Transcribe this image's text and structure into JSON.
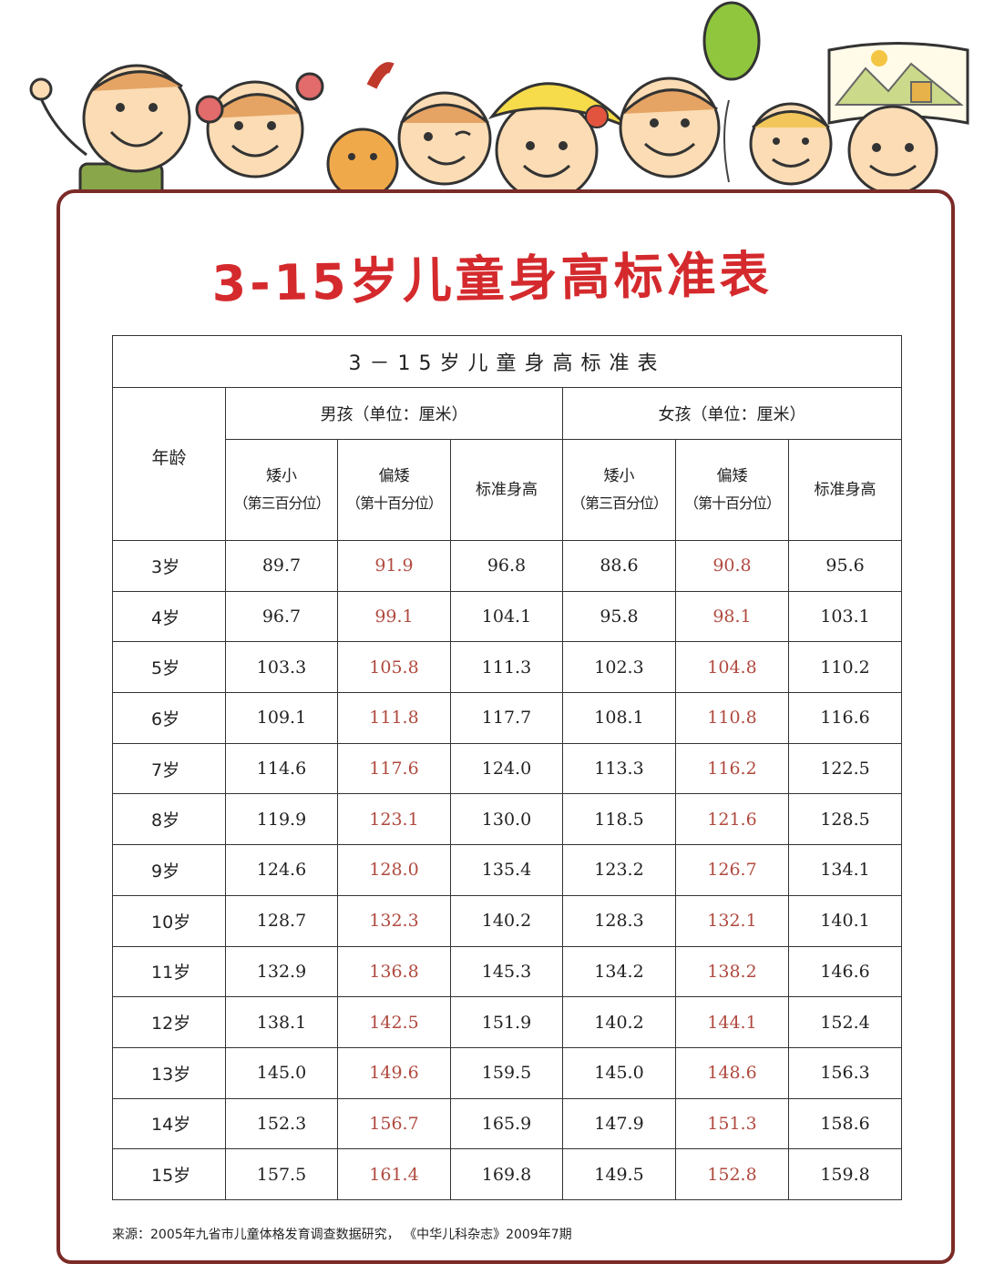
{
  "poster": {
    "title": "3-15岁儿童身高标准表",
    "table_title": "3－15岁儿童身高标准表",
    "source": "来源：2005年九省市儿童体格发育调查数据研究，  《中华儿科杂志》2009年7期"
  },
  "header": {
    "age": "年龄",
    "boys": "男孩（单位：厘米）",
    "girls": "女孩（单位：厘米）",
    "short": "矮小",
    "short_p": "（第三百分位）",
    "below": "偏矮",
    "below_p": "（第十百分位）",
    "standard": "标准身高"
  },
  "rows": [
    {
      "age": "3岁",
      "b1": "89.7",
      "b2": "91.9",
      "b3": "96.8",
      "g1": "88.6",
      "g2": "90.8",
      "g3": "95.6"
    },
    {
      "age": "4岁",
      "b1": "96.7",
      "b2": "99.1",
      "b3": "104.1",
      "g1": "95.8",
      "g2": "98.1",
      "g3": "103.1"
    },
    {
      "age": "5岁",
      "b1": "103.3",
      "b2": "105.8",
      "b3": "111.3",
      "g1": "102.3",
      "g2": "104.8",
      "g3": "110.2"
    },
    {
      "age": "6岁",
      "b1": "109.1",
      "b2": "111.8",
      "b3": "117.7",
      "g1": "108.1",
      "g2": "110.8",
      "g3": "116.6"
    },
    {
      "age": "7岁",
      "b1": "114.6",
      "b2": "117.6",
      "b3": "124.0",
      "g1": "113.3",
      "g2": "116.2",
      "g3": "122.5"
    },
    {
      "age": "8岁",
      "b1": "119.9",
      "b2": "123.1",
      "b3": "130.0",
      "g1": "118.5",
      "g2": "121.6",
      "g3": "128.5"
    },
    {
      "age": "9岁",
      "b1": "124.6",
      "b2": "128.0",
      "b3": "135.4",
      "g1": "123.2",
      "g2": "126.7",
      "g3": "134.1"
    },
    {
      "age": "10岁",
      "b1": "128.7",
      "b2": "132.3",
      "b3": "140.2",
      "g1": "128.3",
      "g2": "132.1",
      "g3": "140.1"
    },
    {
      "age": "11岁",
      "b1": "132.9",
      "b2": "136.8",
      "b3": "145.3",
      "g1": "134.2",
      "g2": "138.2",
      "g3": "146.6"
    },
    {
      "age": "12岁",
      "b1": "138.1",
      "b2": "142.5",
      "b3": "151.9",
      "g1": "140.2",
      "g2": "144.1",
      "g3": "152.4"
    },
    {
      "age": "13岁",
      "b1": "145.0",
      "b2": "149.6",
      "b3": "159.5",
      "g1": "145.0",
      "g2": "148.6",
      "g3": "156.3"
    },
    {
      "age": "14岁",
      "b1": "152.3",
      "b2": "156.7",
      "b3": "165.9",
      "g1": "147.9",
      "g2": "151.3",
      "g3": "158.6"
    },
    {
      "age": "15岁",
      "b1": "157.5",
      "b2": "161.4",
      "b3": "169.8",
      "g1": "149.5",
      "g2": "152.8",
      "g3": "159.8"
    }
  ],
  "colors": {
    "title_red": "#d42a2d",
    "border_brown": "#7b2b27",
    "below_value": "#b04a3f"
  },
  "illustration": [
    "waving-kid-icon",
    "pigtail-girl-icon",
    "cat-icon",
    "winking-kid-icon",
    "hat-girl-icon",
    "balloon-kid-icon",
    "blonde-girl-icon",
    "painting-kid-icon"
  ]
}
